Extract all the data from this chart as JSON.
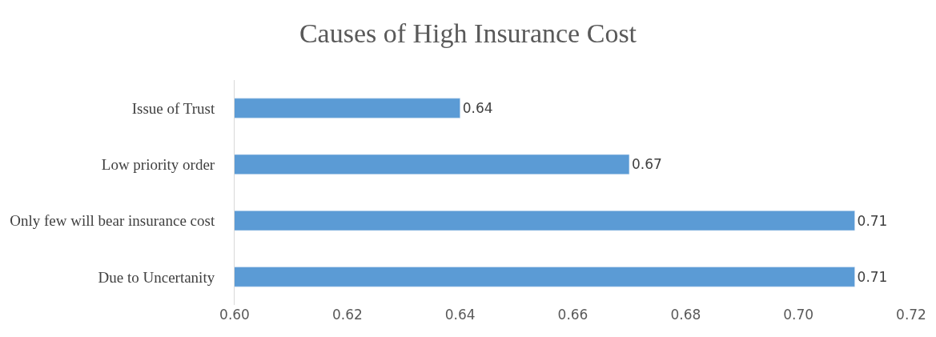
{
  "chart_data": {
    "type": "bar",
    "orientation": "horizontal",
    "title": "Causes of High Insurance Cost",
    "categories": [
      "Issue of Trust",
      "Low priority order",
      "Only few will bear insurance cost",
      "Due to Uncertanity"
    ],
    "values": [
      0.64,
      0.67,
      0.71,
      0.71
    ],
    "color": "#5b9bd5",
    "xlim": [
      0.6,
      0.72
    ],
    "xticks": [
      {
        "value": 0.6,
        "label": "0.60"
      },
      {
        "value": 0.62,
        "label": "0.62"
      },
      {
        "value": 0.64,
        "label": "0.64"
      },
      {
        "value": 0.66,
        "label": "0.66"
      },
      {
        "value": 0.68,
        "label": "0.68"
      },
      {
        "value": 0.7,
        "label": "0.70"
      },
      {
        "value": 0.72,
        "label": "0.72"
      }
    ],
    "data_labels": true,
    "grid": false,
    "legend": false
  }
}
